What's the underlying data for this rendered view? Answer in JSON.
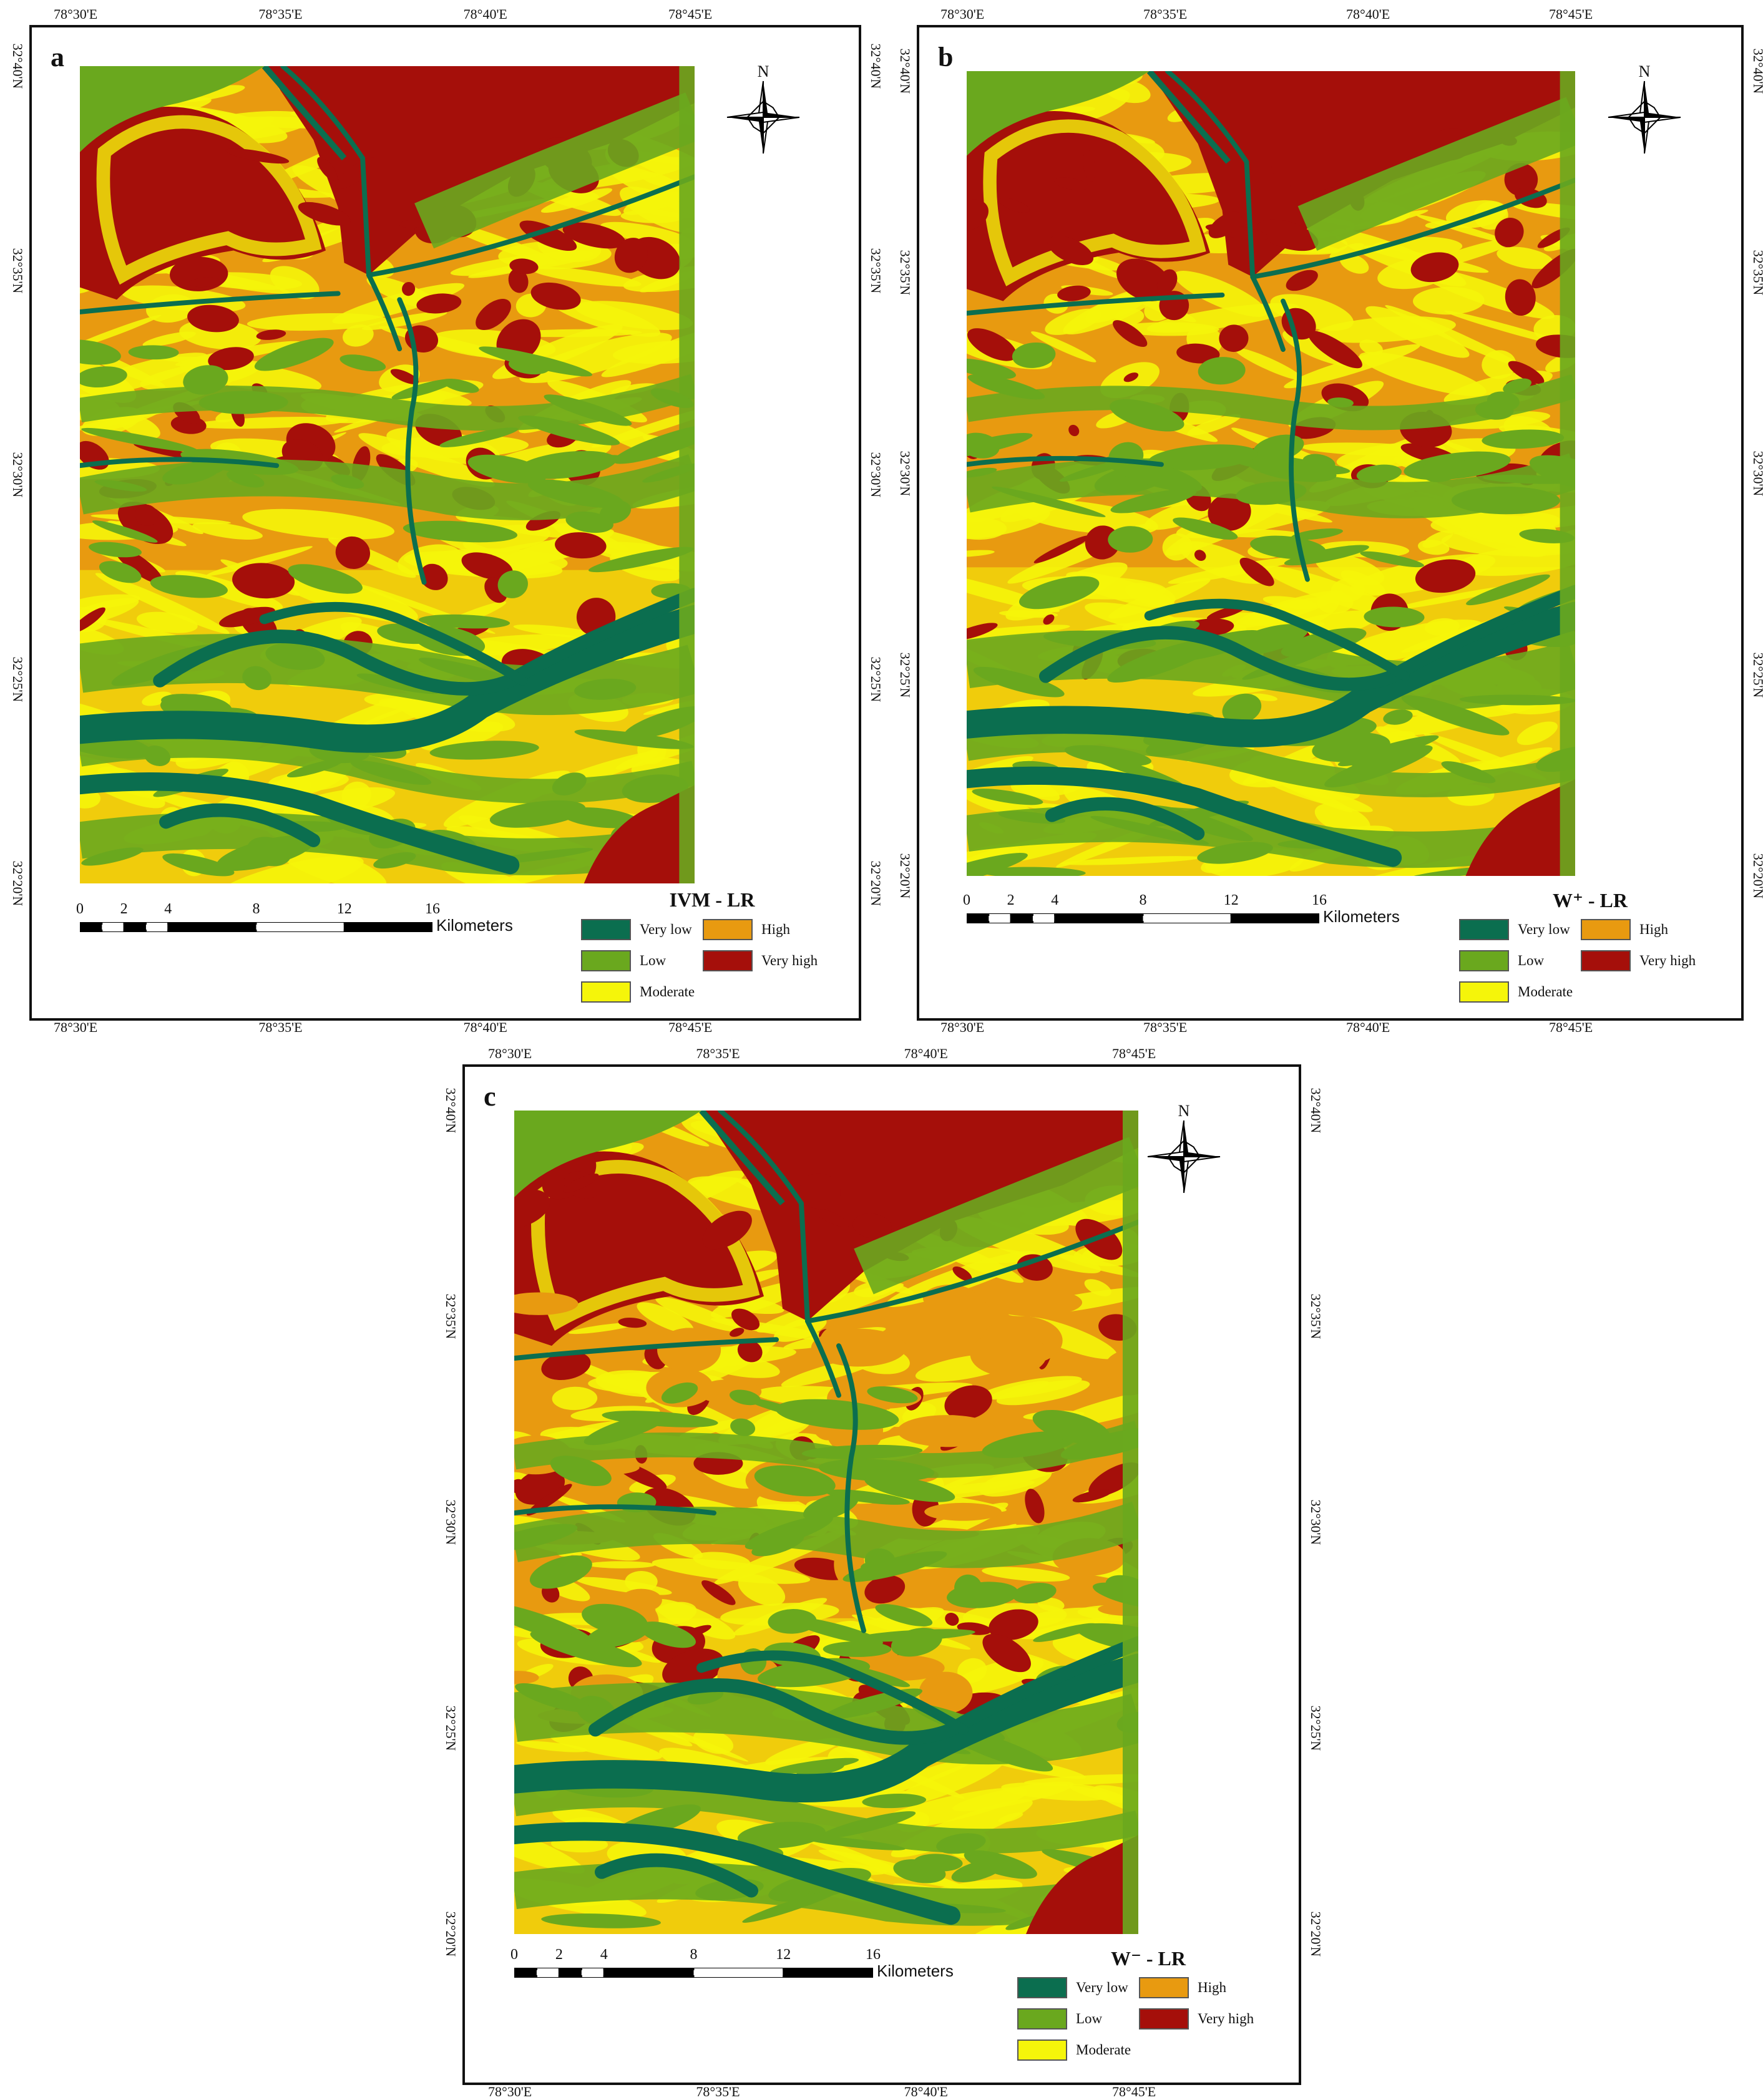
{
  "panels": [
    {
      "id": "a",
      "letter": "a",
      "legend_title": "IVM - LR",
      "north_label": "N",
      "lon_ticks": [
        "78°30'E",
        "78°35'E",
        "78°40'E",
        "78°45'E"
      ],
      "lat_ticks": [
        "32°40'N",
        "32°35'N",
        "32°30'N",
        "32°25'N",
        "32°20'N"
      ]
    },
    {
      "id": "b",
      "letter": "b",
      "legend_title": "W⁺ - LR",
      "north_label": "N",
      "lon_ticks": [
        "78°30'E",
        "78°35'E",
        "78°40'E",
        "78°45'E"
      ],
      "lat_ticks": [
        "32°40'N",
        "32°35'N",
        "32°30'N",
        "32°25'N",
        "32°20'N"
      ]
    },
    {
      "id": "c",
      "letter": "c",
      "legend_title": "W⁻ - LR",
      "north_label": "N",
      "lon_ticks": [
        "78°30'E",
        "78°35'E",
        "78°40'E",
        "78°45'E"
      ],
      "lat_ticks": [
        "32°40'N",
        "32°35'N",
        "32°30'N",
        "32°25'N",
        "32°20'N"
      ]
    }
  ],
  "scale_bar": {
    "labels": [
      "0",
      "2",
      "4",
      "8",
      "12",
      "16"
    ],
    "unit": "Kilometers"
  },
  "legend": {
    "classes": [
      {
        "label": "Very low",
        "color": "#0b6e4f"
      },
      {
        "label": "Low",
        "color": "#6aa81e"
      },
      {
        "label": "Moderate",
        "color": "#f5f50a"
      },
      {
        "label": "High",
        "color": "#e89a10"
      },
      {
        "label": "Very high",
        "color": "#a50f0a"
      }
    ]
  },
  "icons": {
    "north_arrow": "north-arrow-compass-icon"
  }
}
